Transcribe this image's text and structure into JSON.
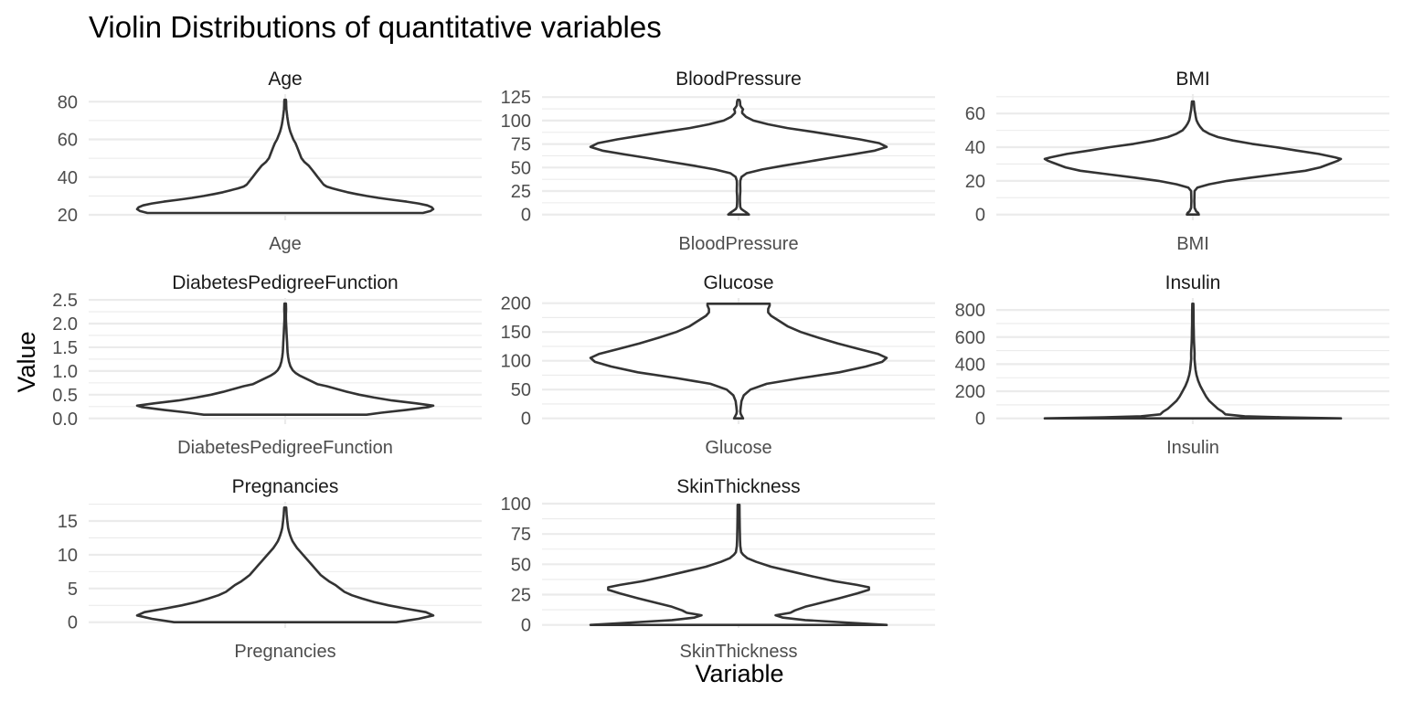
{
  "chart_data": {
    "type": "violin",
    "title": "Violin Distributions of quantitative variables",
    "xlabel": "Variable",
    "ylabel": "Value",
    "grid": "major and minor horizontal gridlines",
    "facets": [
      {
        "name": "Age",
        "category": "Age",
        "ylim": [
          17.1,
          84.0
        ],
        "yticks": [
          20,
          40,
          60,
          80
        ],
        "tick_labels": [
          "20",
          "40",
          "60",
          "80"
        ],
        "min": 21,
        "max": 81,
        "density": [
          [
            21,
            0.93
          ],
          [
            22,
            0.98
          ],
          [
            23,
            1.0
          ],
          [
            24,
            0.99
          ],
          [
            25,
            0.96
          ],
          [
            26,
            0.9
          ],
          [
            27,
            0.82
          ],
          [
            28,
            0.72
          ],
          [
            29,
            0.63
          ],
          [
            30,
            0.55
          ],
          [
            31,
            0.48
          ],
          [
            32,
            0.42
          ],
          [
            33,
            0.37
          ],
          [
            34,
            0.32
          ],
          [
            35,
            0.28
          ],
          [
            36,
            0.26
          ],
          [
            37,
            0.25
          ],
          [
            38,
            0.24
          ],
          [
            40,
            0.22
          ],
          [
            42,
            0.2
          ],
          [
            44,
            0.18
          ],
          [
            46,
            0.16
          ],
          [
            48,
            0.13
          ],
          [
            50,
            0.11
          ],
          [
            52,
            0.1
          ],
          [
            54,
            0.09
          ],
          [
            56,
            0.08
          ],
          [
            58,
            0.07
          ],
          [
            60,
            0.055
          ],
          [
            62,
            0.045
          ],
          [
            64,
            0.035
          ],
          [
            66,
            0.028
          ],
          [
            68,
            0.022
          ],
          [
            70,
            0.018
          ],
          [
            72,
            0.014
          ],
          [
            74,
            0.011
          ],
          [
            76,
            0.008
          ],
          [
            78,
            0.007
          ],
          [
            80,
            0.006
          ],
          [
            81,
            0.005
          ]
        ]
      },
      {
        "name": "BloodPressure",
        "category": "BloodPressure",
        "ylim": [
          -6.1,
          128.1
        ],
        "yticks": [
          0,
          25,
          50,
          75,
          100,
          125
        ],
        "tick_labels": [
          "0",
          "25",
          "50",
          "75",
          "100",
          "125"
        ],
        "min": 0,
        "max": 122,
        "density": [
          [
            0,
            0.07
          ],
          [
            2,
            0.055
          ],
          [
            4,
            0.035
          ],
          [
            6,
            0.018
          ],
          [
            8,
            0.012
          ],
          [
            12,
            0.01
          ],
          [
            16,
            0.009
          ],
          [
            20,
            0.01
          ],
          [
            24,
            0.012
          ],
          [
            28,
            0.012
          ],
          [
            32,
            0.011
          ],
          [
            36,
            0.012
          ],
          [
            40,
            0.02
          ],
          [
            44,
            0.055
          ],
          [
            48,
            0.16
          ],
          [
            52,
            0.3
          ],
          [
            56,
            0.46
          ],
          [
            60,
            0.61
          ],
          [
            64,
            0.77
          ],
          [
            68,
            0.92
          ],
          [
            72,
            1.0
          ],
          [
            76,
            0.95
          ],
          [
            80,
            0.82
          ],
          [
            84,
            0.66
          ],
          [
            88,
            0.5
          ],
          [
            92,
            0.33
          ],
          [
            96,
            0.2
          ],
          [
            100,
            0.1
          ],
          [
            104,
            0.05
          ],
          [
            108,
            0.025
          ],
          [
            110,
            0.025
          ],
          [
            112,
            0.03
          ],
          [
            114,
            0.02
          ],
          [
            116,
            0.012
          ],
          [
            120,
            0.01
          ],
          [
            122,
            0.006
          ]
        ]
      },
      {
        "name": "BMI",
        "category": "BMI",
        "ylim": [
          -3.4,
          71.5
        ],
        "yticks": [
          0,
          20,
          40,
          60
        ],
        "tick_labels": [
          "0",
          "20",
          "40",
          "60"
        ],
        "min": 0,
        "max": 67.1,
        "density": [
          [
            0,
            0.04
          ],
          [
            1,
            0.035
          ],
          [
            2,
            0.022
          ],
          [
            4,
            0.012
          ],
          [
            8,
            0.01
          ],
          [
            12,
            0.011
          ],
          [
            14,
            0.012
          ],
          [
            16,
            0.03
          ],
          [
            18,
            0.11
          ],
          [
            20,
            0.23
          ],
          [
            22,
            0.4
          ],
          [
            24,
            0.58
          ],
          [
            26,
            0.76
          ],
          [
            28,
            0.86
          ],
          [
            30,
            0.92
          ],
          [
            32,
            0.98
          ],
          [
            33,
            1.0
          ],
          [
            34,
            0.96
          ],
          [
            36,
            0.85
          ],
          [
            38,
            0.7
          ],
          [
            40,
            0.56
          ],
          [
            42,
            0.4
          ],
          [
            44,
            0.27
          ],
          [
            46,
            0.17
          ],
          [
            48,
            0.11
          ],
          [
            50,
            0.07
          ],
          [
            52,
            0.05
          ],
          [
            54,
            0.035
          ],
          [
            56,
            0.025
          ],
          [
            58,
            0.02
          ],
          [
            60,
            0.016
          ],
          [
            62,
            0.012
          ],
          [
            64,
            0.009
          ],
          [
            67.1,
            0.006
          ]
        ]
      },
      {
        "name": "DiabetesPedigreeFunction",
        "category": "DiabetesPedigreeFunction",
        "ylim": [
          -0.12,
          2.54
        ],
        "yticks": [
          0.0,
          0.5,
          1.0,
          1.5,
          2.0,
          2.5
        ],
        "tick_labels": [
          "0.0",
          "0.5",
          "1.0",
          "1.5",
          "2.0",
          "2.5"
        ],
        "min": 0.078,
        "max": 2.42,
        "density": [
          [
            0.078,
            0.55
          ],
          [
            0.12,
            0.65
          ],
          [
            0.18,
            0.82
          ],
          [
            0.24,
            0.97
          ],
          [
            0.27,
            1.0
          ],
          [
            0.32,
            0.88
          ],
          [
            0.38,
            0.72
          ],
          [
            0.44,
            0.6
          ],
          [
            0.5,
            0.5
          ],
          [
            0.56,
            0.42
          ],
          [
            0.62,
            0.35
          ],
          [
            0.68,
            0.28
          ],
          [
            0.72,
            0.22
          ],
          [
            0.78,
            0.18
          ],
          [
            0.84,
            0.14
          ],
          [
            0.9,
            0.1
          ],
          [
            0.96,
            0.07
          ],
          [
            1.02,
            0.05
          ],
          [
            1.1,
            0.035
          ],
          [
            1.2,
            0.025
          ],
          [
            1.3,
            0.02
          ],
          [
            1.4,
            0.016
          ],
          [
            1.5,
            0.014
          ],
          [
            1.6,
            0.013
          ],
          [
            1.7,
            0.011
          ],
          [
            1.8,
            0.009
          ],
          [
            1.9,
            0.008
          ],
          [
            2.0,
            0.006
          ],
          [
            2.1,
            0.005
          ],
          [
            2.2,
            0.005
          ],
          [
            2.3,
            0.006
          ],
          [
            2.42,
            0.005
          ]
        ]
      },
      {
        "name": "Glucose",
        "category": "Glucose",
        "ylim": [
          -10.0,
          209.0
        ],
        "yticks": [
          0,
          50,
          100,
          150,
          200
        ],
        "tick_labels": [
          "0",
          "50",
          "100",
          "150",
          "200"
        ],
        "min": 0,
        "max": 199,
        "density": [
          [
            0,
            0.03
          ],
          [
            4,
            0.022
          ],
          [
            8,
            0.014
          ],
          [
            12,
            0.012
          ],
          [
            20,
            0.015
          ],
          [
            30,
            0.02
          ],
          [
            40,
            0.035
          ],
          [
            50,
            0.08
          ],
          [
            60,
            0.19
          ],
          [
            70,
            0.42
          ],
          [
            80,
            0.68
          ],
          [
            90,
            0.86
          ],
          [
            98,
            0.97
          ],
          [
            105,
            1.0
          ],
          [
            112,
            0.94
          ],
          [
            120,
            0.82
          ],
          [
            130,
            0.67
          ],
          [
            140,
            0.54
          ],
          [
            150,
            0.42
          ],
          [
            160,
            0.33
          ],
          [
            170,
            0.27
          ],
          [
            178,
            0.22
          ],
          [
            184,
            0.2
          ],
          [
            190,
            0.2
          ],
          [
            196,
            0.21
          ],
          [
            199,
            0.21
          ]
        ]
      },
      {
        "name": "Insulin",
        "category": "Insulin",
        "ylim": [
          -42.3,
          888.3
        ],
        "yticks": [
          0,
          200,
          400,
          600,
          800
        ],
        "tick_labels": [
          "0",
          "200",
          "400",
          "600",
          "800"
        ],
        "min": 0,
        "max": 846,
        "density": [
          [
            0,
            1.0
          ],
          [
            8,
            0.6
          ],
          [
            16,
            0.35
          ],
          [
            30,
            0.22
          ],
          [
            50,
            0.2
          ],
          [
            70,
            0.17
          ],
          [
            100,
            0.14
          ],
          [
            130,
            0.11
          ],
          [
            160,
            0.09
          ],
          [
            200,
            0.07
          ],
          [
            240,
            0.05
          ],
          [
            280,
            0.035
          ],
          [
            320,
            0.025
          ],
          [
            360,
            0.018
          ],
          [
            400,
            0.014
          ],
          [
            440,
            0.011
          ],
          [
            480,
            0.012
          ],
          [
            520,
            0.01
          ],
          [
            560,
            0.008
          ],
          [
            600,
            0.007
          ],
          [
            650,
            0.006
          ],
          [
            700,
            0.005
          ],
          [
            760,
            0.005
          ],
          [
            846,
            0.004
          ]
        ]
      },
      {
        "name": "Pregnancies",
        "category": "Pregnancies",
        "ylim": [
          -0.85,
          17.85
        ],
        "yticks": [
          0,
          5,
          10,
          15
        ],
        "tick_labels": [
          "0",
          "5",
          "10",
          "15"
        ],
        "min": 0,
        "max": 17,
        "density": [
          [
            0,
            0.75
          ],
          [
            0.5,
            0.9
          ],
          [
            1,
            1.0
          ],
          [
            1.5,
            0.95
          ],
          [
            2,
            0.82
          ],
          [
            2.5,
            0.7
          ],
          [
            3,
            0.6
          ],
          [
            3.5,
            0.52
          ],
          [
            4,
            0.45
          ],
          [
            4.5,
            0.4
          ],
          [
            5,
            0.37
          ],
          [
            5.5,
            0.34
          ],
          [
            6,
            0.3
          ],
          [
            6.5,
            0.27
          ],
          [
            7,
            0.24
          ],
          [
            7.5,
            0.22
          ],
          [
            8,
            0.2
          ],
          [
            8.5,
            0.18
          ],
          [
            9,
            0.16
          ],
          [
            9.5,
            0.14
          ],
          [
            10,
            0.12
          ],
          [
            10.5,
            0.1
          ],
          [
            11,
            0.08
          ],
          [
            11.5,
            0.065
          ],
          [
            12,
            0.05
          ],
          [
            12.5,
            0.04
          ],
          [
            13,
            0.032
          ],
          [
            13.5,
            0.025
          ],
          [
            14,
            0.02
          ],
          [
            15,
            0.014
          ],
          [
            16,
            0.01
          ],
          [
            17,
            0.007
          ]
        ]
      },
      {
        "name": "SkinThickness",
        "category": "SkinThickness",
        "ylim": [
          -2.5,
          101.5
        ],
        "yticks": [
          0,
          25,
          50,
          75,
          100
        ],
        "tick_labels": [
          "0",
          "25",
          "50",
          "75",
          "100"
        ],
        "min": 0,
        "max": 99,
        "density": [
          [
            0,
            1.0
          ],
          [
            2,
            0.72
          ],
          [
            4,
            0.45
          ],
          [
            6,
            0.3
          ],
          [
            8,
            0.25
          ],
          [
            10,
            0.35
          ],
          [
            12,
            0.38
          ],
          [
            15,
            0.45
          ],
          [
            18,
            0.55
          ],
          [
            22,
            0.68
          ],
          [
            26,
            0.8
          ],
          [
            29,
            0.88
          ],
          [
            31,
            0.88
          ],
          [
            33,
            0.8
          ],
          [
            36,
            0.65
          ],
          [
            40,
            0.5
          ],
          [
            44,
            0.36
          ],
          [
            48,
            0.22
          ],
          [
            52,
            0.12
          ],
          [
            55,
            0.06
          ],
          [
            58,
            0.03
          ],
          [
            60,
            0.018
          ],
          [
            65,
            0.012
          ],
          [
            70,
            0.01
          ],
          [
            80,
            0.008
          ],
          [
            90,
            0.007
          ],
          [
            99,
            0.006
          ]
        ]
      }
    ]
  }
}
